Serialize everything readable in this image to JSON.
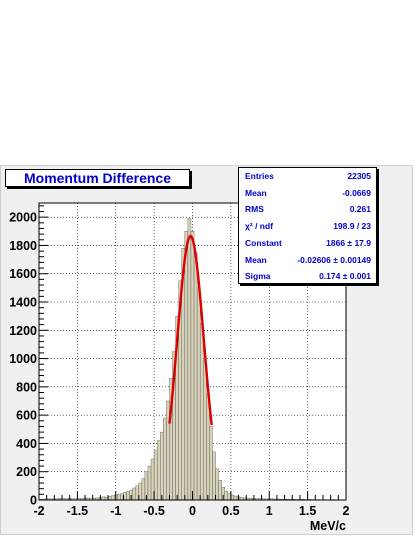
{
  "chart_data": {
    "type": "bar",
    "title": "Momentum Difference",
    "xlabel": "MeV/c",
    "ylabel": "",
    "xlim": [
      -2,
      2
    ],
    "ylim": [
      0,
      2100
    ],
    "grid": true,
    "x_ticks": [
      "-2",
      "-1.5",
      "-1",
      "-0.5",
      "0",
      "0.5",
      "1",
      "1.5",
      "2"
    ],
    "y_ticks": [
      "0",
      "200",
      "400",
      "600",
      "800",
      "1000",
      "1200",
      "1400",
      "1600",
      "1800",
      "2000"
    ],
    "bin_width": 0.04,
    "bin_centers": [
      -2.0,
      -1.96,
      -1.92,
      -1.88,
      -1.84,
      -1.8,
      -1.76,
      -1.72,
      -1.68,
      -1.64,
      -1.6,
      -1.56,
      -1.52,
      -1.48,
      -1.44,
      -1.4,
      -1.36,
      -1.32,
      -1.28,
      -1.24,
      -1.2,
      -1.16,
      -1.12,
      -1.08,
      -1.04,
      -1.0,
      -0.96,
      -0.92,
      -0.88,
      -0.84,
      -0.8,
      -0.76,
      -0.72,
      -0.68,
      -0.64,
      -0.6,
      -0.56,
      -0.52,
      -0.48,
      -0.44,
      -0.4,
      -0.36,
      -0.32,
      -0.28,
      -0.24,
      -0.2,
      -0.16,
      -0.12,
      -0.08,
      -0.04,
      0.0,
      0.04,
      0.08,
      0.12,
      0.16,
      0.2,
      0.24,
      0.28,
      0.32,
      0.36,
      0.4,
      0.44,
      0.48,
      0.52,
      0.56,
      0.6,
      0.64,
      0.68,
      0.72,
      0.76,
      0.8,
      0.84,
      0.88,
      0.92,
      0.96,
      1.0,
      1.04,
      1.08,
      1.12,
      1.16,
      1.2,
      1.24,
      1.28,
      1.32,
      1.36,
      1.4,
      1.44,
      1.48,
      1.52,
      1.56,
      1.6,
      1.64,
      1.68,
      1.72,
      1.76,
      1.8,
      1.84,
      1.88,
      1.92,
      1.96
    ],
    "values": [
      0,
      5,
      8,
      10,
      8,
      7,
      10,
      12,
      10,
      8,
      12,
      10,
      8,
      12,
      10,
      15,
      13,
      14,
      12,
      15,
      18,
      22,
      20,
      25,
      30,
      35,
      40,
      45,
      55,
      60,
      70,
      85,
      100,
      120,
      150,
      200,
      240,
      290,
      350,
      420,
      480,
      580,
      700,
      860,
      1050,
      1300,
      1550,
      1780,
      1900,
      1990,
      1900,
      1750,
      1500,
      1250,
      1000,
      750,
      520,
      340,
      220,
      140,
      90,
      60,
      45,
      35,
      28,
      22,
      18,
      15,
      14,
      12,
      12,
      10,
      11,
      9,
      8,
      8,
      10,
      6,
      7,
      6,
      5,
      6,
      4,
      5,
      4,
      3,
      5,
      3,
      4,
      3,
      2,
      3,
      2,
      3,
      2,
      2,
      3,
      2,
      2,
      2
    ],
    "fit": {
      "function": "gaus",
      "constant": 1866,
      "mean": -0.02606,
      "sigma": 0.174,
      "x_range": [
        -0.3,
        0.25
      ],
      "color": "#dd0000"
    },
    "fill_color": "#d7d2b8",
    "stats": [
      {
        "label": "Entries",
        "value": "22305"
      },
      {
        "label": "Mean",
        "value": "-0.0669"
      },
      {
        "label": "RMS",
        "value": "0.261"
      },
      {
        "label": "χ² / ndf",
        "value": "198.9 / 23"
      },
      {
        "label": "Constant",
        "value": "1866 ± 17.9"
      },
      {
        "label": "Mean",
        "value": "-0.02606 ± 0.00149"
      },
      {
        "label": "Sigma",
        "value": "0.174 ± 0.001"
      }
    ]
  }
}
